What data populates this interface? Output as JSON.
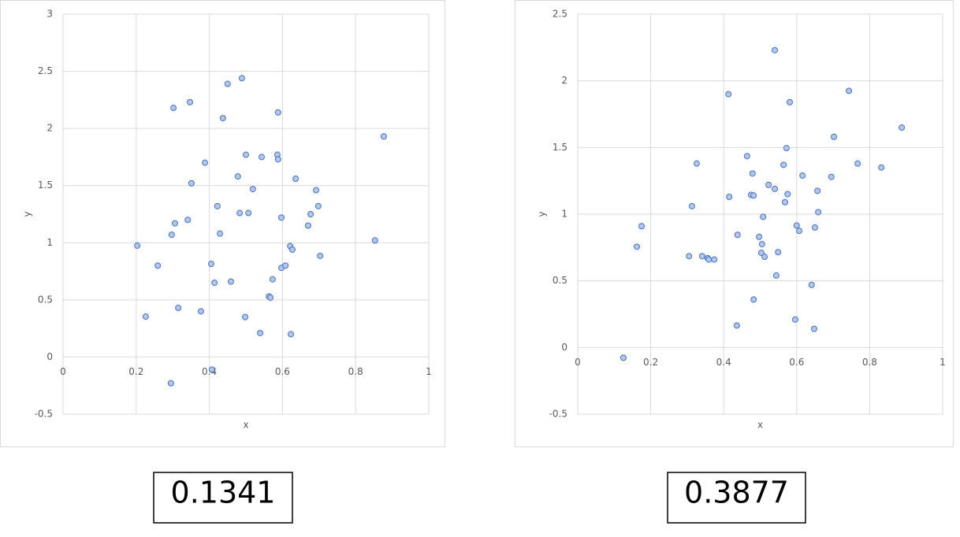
{
  "chart_data": [
    {
      "type": "scatter",
      "x_label": "x",
      "y_label": "y",
      "annotation": "0.1341",
      "xlim": [
        0,
        1
      ],
      "xticks": [
        0,
        0.2,
        0.4,
        0.6,
        0.8,
        1
      ],
      "ylim": [
        -0.5,
        3
      ],
      "yticks": [
        -0.5,
        0,
        0.5,
        1,
        1.5,
        2,
        2.5,
        3
      ],
      "grid": true,
      "series": [
        {
          "color": "#4472c4",
          "x": [
            0.203,
            0.226,
            0.259,
            0.302,
            0.297,
            0.306,
            0.295,
            0.315,
            0.347,
            0.341,
            0.351,
            0.377,
            0.388,
            0.405,
            0.407,
            0.414,
            0.422,
            0.429,
            0.437,
            0.45,
            0.459,
            0.478,
            0.483,
            0.489,
            0.498,
            0.5,
            0.507,
            0.519,
            0.539,
            0.543,
            0.563,
            0.567,
            0.573,
            0.586,
            0.588,
            0.588,
            0.597,
            0.597,
            0.608,
            0.621,
            0.627,
            0.623,
            0.636,
            0.67,
            0.677,
            0.692,
            0.698,
            0.703,
            0.853,
            0.877
          ],
          "values": [
            0.975,
            0.354,
            0.8,
            2.18,
            1.07,
            1.17,
            -0.23,
            0.43,
            2.23,
            1.2,
            1.52,
            0.4,
            1.7,
            0.815,
            -0.11,
            0.65,
            1.32,
            1.08,
            2.09,
            2.39,
            0.66,
            1.58,
            1.26,
            2.44,
            0.35,
            1.77,
            1.26,
            1.47,
            0.21,
            1.75,
            0.53,
            0.52,
            0.68,
            1.77,
            2.14,
            1.73,
            1.22,
            0.78,
            0.8,
            0.97,
            0.94,
            0.2,
            1.56,
            1.15,
            1.25,
            1.46,
            1.32,
            0.885,
            1.02,
            1.93
          ]
        }
      ]
    },
    {
      "type": "scatter",
      "x_label": "x",
      "y_label": "y",
      "annotation": "0.3877",
      "xlim": [
        0,
        1
      ],
      "xticks": [
        0,
        0.2,
        0.4,
        0.6,
        0.8,
        1
      ],
      "ylim": [
        -0.5,
        2.5
      ],
      "yticks": [
        -0.5,
        0,
        0.5,
        1,
        1.5,
        2,
        2.5
      ],
      "grid": true,
      "series": [
        {
          "color": "#4472c4",
          "x": [
            0.125,
            0.162,
            0.175,
            0.305,
            0.313,
            0.326,
            0.341,
            0.356,
            0.359,
            0.374,
            0.413,
            0.415,
            0.436,
            0.438,
            0.464,
            0.475,
            0.479,
            0.482,
            0.482,
            0.497,
            0.503,
            0.505,
            0.508,
            0.512,
            0.523,
            0.54,
            0.54,
            0.544,
            0.549,
            0.564,
            0.568,
            0.572,
            0.575,
            0.581,
            0.596,
            0.6,
            0.607,
            0.616,
            0.641,
            0.648,
            0.65,
            0.657,
            0.659,
            0.695,
            0.702,
            0.743,
            0.767,
            0.832,
            0.888
          ],
          "values": [
            -0.077,
            0.756,
            0.91,
            0.685,
            1.06,
            1.38,
            0.685,
            0.67,
            0.66,
            0.66,
            1.9,
            1.13,
            0.165,
            0.845,
            1.435,
            1.145,
            1.305,
            1.14,
            0.36,
            0.83,
            0.71,
            0.775,
            0.98,
            0.68,
            1.22,
            1.19,
            2.23,
            0.54,
            0.715,
            1.37,
            1.09,
            1.495,
            1.15,
            1.84,
            0.21,
            0.915,
            0.875,
            1.29,
            0.47,
            0.14,
            0.9,
            1.175,
            1.015,
            1.28,
            1.58,
            1.925,
            1.38,
            1.35,
            1.65
          ]
        }
      ]
    }
  ]
}
